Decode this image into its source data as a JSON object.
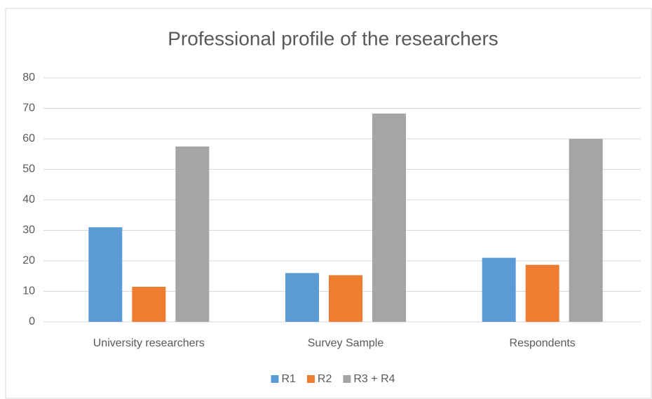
{
  "chart_data": {
    "type": "bar",
    "title": "Professional profile of the researchers",
    "categories": [
      "University researchers",
      "Survey Sample",
      "Respondents"
    ],
    "series": [
      {
        "name": "R1",
        "color": "#5b9bd5",
        "values": [
          31,
          16,
          21
        ]
      },
      {
        "name": "R2",
        "color": "#ed7d31",
        "values": [
          11.5,
          15.3,
          18.7
        ]
      },
      {
        "name": "R3 + R4",
        "color": "#a5a5a5",
        "values": [
          57.5,
          68.3,
          60
        ]
      }
    ],
    "ylim": [
      0,
      80
    ],
    "yticks": [
      0,
      10,
      20,
      30,
      40,
      50,
      60,
      70,
      80
    ],
    "grid": true,
    "legend": "bottom"
  }
}
